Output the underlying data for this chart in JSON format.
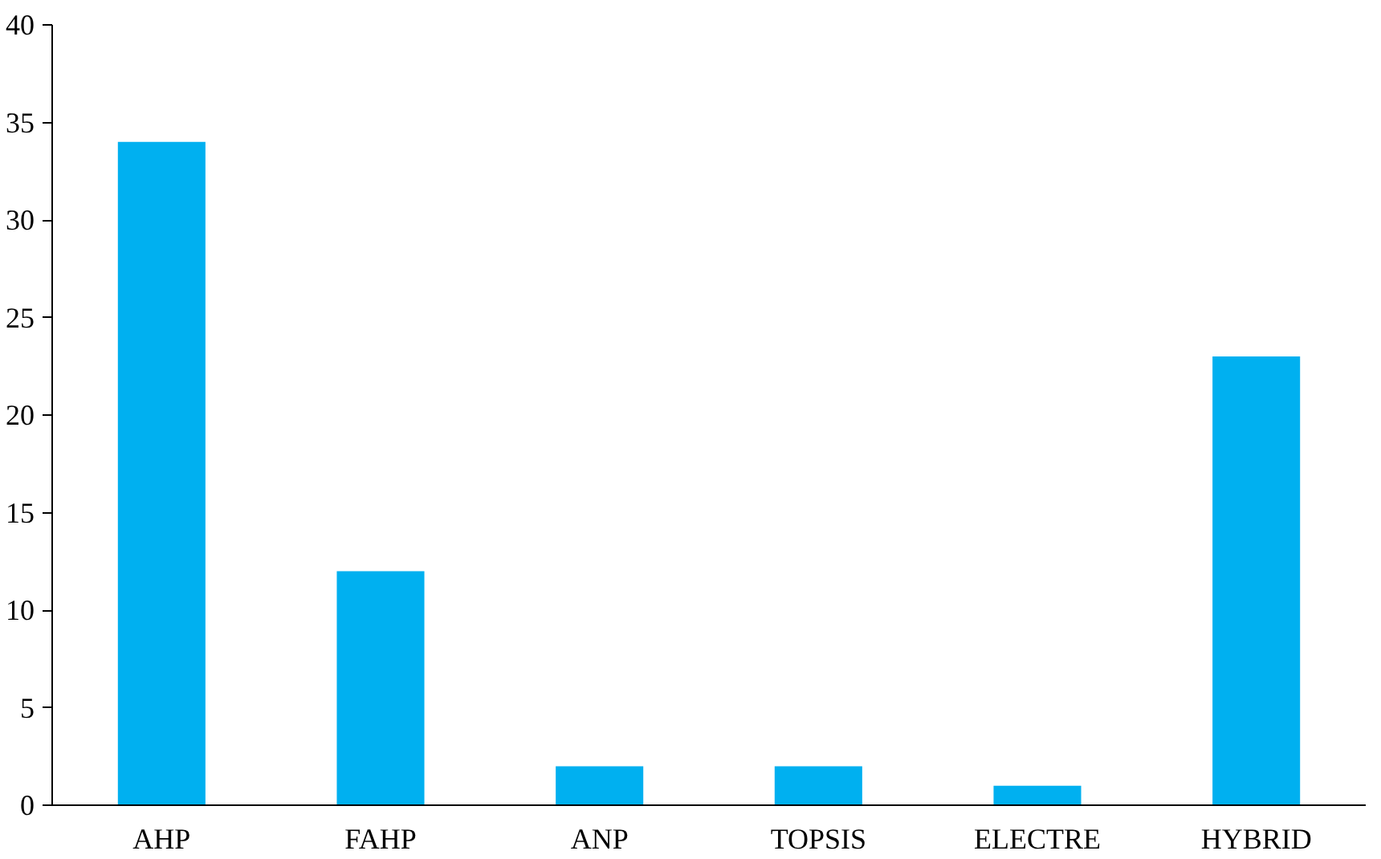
{
  "chart_data": {
    "type": "bar",
    "categories": [
      "AHP",
      "FAHP",
      "ANP",
      "TOPSIS",
      "ELECTRE",
      "HYBRID"
    ],
    "values": [
      34,
      12,
      2,
      2,
      1,
      23
    ],
    "color": "#00b0f0",
    "ylim": [
      0,
      40
    ],
    "yticks": [
      0,
      5,
      10,
      15,
      20,
      25,
      30,
      35,
      40
    ],
    "grid": false
  }
}
